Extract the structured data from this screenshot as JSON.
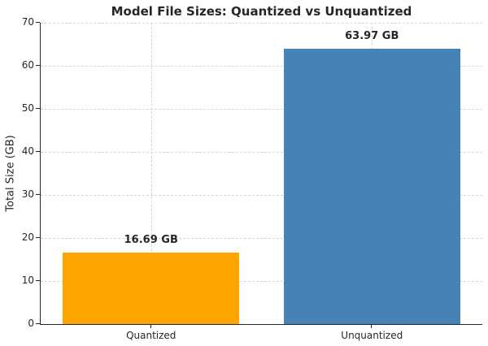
{
  "chart_data": {
    "type": "bar",
    "title": "Model File Sizes: Quantized vs Unquantized",
    "categories": [
      "Quantized",
      "Unquantized"
    ],
    "values": [
      16.69,
      63.97
    ],
    "value_labels": [
      "16.69 GB",
      "63.97 GB"
    ],
    "bar_colors": [
      "#FFA500",
      "#4682B4"
    ],
    "xlabel": "",
    "ylabel": "Total Size (GB)",
    "ylim": [
      0,
      70
    ],
    "ytick_step": 10,
    "ytick_labels": [
      "0",
      "10",
      "20",
      "30",
      "40",
      "50",
      "60",
      "70"
    ],
    "grid": "both",
    "grid_linestyle": "dashed",
    "grid_color": "#d4d4d4",
    "legend": "none",
    "bar_width_fraction": 0.8
  },
  "colors": {
    "text": "#262626",
    "spine": "#262626",
    "background": "#ffffff"
  }
}
